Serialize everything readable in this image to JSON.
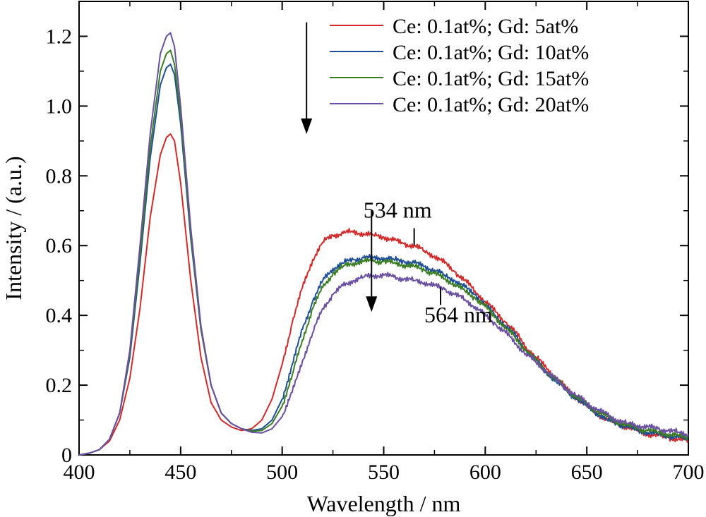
{
  "chart_data": {
    "type": "line",
    "xlabel": "Wavelength / nm",
    "ylabel": "Intensity / (a.u.)",
    "xlim": [
      400,
      700
    ],
    "ylim": [
      0,
      1.3
    ],
    "x_ticks": [
      400,
      450,
      500,
      550,
      600,
      650,
      700
    ],
    "y_ticks": [
      0,
      0.2,
      0.4,
      0.6,
      0.8,
      1.0,
      1.2
    ],
    "x_tick_labels": [
      "400",
      "450",
      "500",
      "550",
      "600",
      "650",
      "700"
    ],
    "y_tick_labels": [
      "0",
      "0.2",
      "0.4",
      "0.6",
      "0.8",
      "1.0",
      "1.2"
    ],
    "grid": false,
    "legend_position": "top-right",
    "series": [
      {
        "name": "Ce: 0.1at%; Gd: 5at%",
        "color": "#d42a2a",
        "x": [
          400,
          405,
          410,
          415,
          420,
          425,
          430,
          435,
          440,
          443,
          445,
          447,
          450,
          455,
          460,
          465,
          470,
          475,
          480,
          485,
          490,
          495,
          500,
          505,
          510,
          515,
          520,
          525,
          530,
          534,
          540,
          545,
          550,
          555,
          560,
          565,
          570,
          575,
          580,
          585,
          590,
          595,
          600,
          605,
          610,
          615,
          620,
          625,
          630,
          635,
          640,
          645,
          650,
          655,
          660,
          665,
          670,
          675,
          680,
          685,
          690,
          695,
          700
        ],
        "y": [
          0.0,
          0.005,
          0.015,
          0.04,
          0.1,
          0.22,
          0.42,
          0.68,
          0.86,
          0.91,
          0.92,
          0.9,
          0.78,
          0.5,
          0.28,
          0.15,
          0.1,
          0.08,
          0.07,
          0.075,
          0.1,
          0.16,
          0.26,
          0.38,
          0.48,
          0.56,
          0.61,
          0.63,
          0.635,
          0.64,
          0.635,
          0.63,
          0.625,
          0.615,
          0.605,
          0.6,
          0.585,
          0.57,
          0.55,
          0.525,
          0.5,
          0.47,
          0.44,
          0.41,
          0.38,
          0.35,
          0.31,
          0.28,
          0.25,
          0.22,
          0.19,
          0.165,
          0.14,
          0.12,
          0.1,
          0.09,
          0.08,
          0.07,
          0.06,
          0.055,
          0.05,
          0.045,
          0.04
        ]
      },
      {
        "name": "Ce: 0.1at%; Gd: 10at%",
        "color": "#1f4e99",
        "x": [
          400,
          405,
          410,
          415,
          420,
          425,
          430,
          435,
          440,
          443,
          445,
          447,
          450,
          455,
          460,
          465,
          470,
          475,
          480,
          485,
          490,
          495,
          500,
          505,
          510,
          515,
          520,
          525,
          530,
          535,
          540,
          545,
          550,
          555,
          560,
          565,
          570,
          575,
          580,
          585,
          590,
          595,
          600,
          605,
          610,
          615,
          620,
          625,
          630,
          635,
          640,
          645,
          650,
          655,
          660,
          665,
          670,
          675,
          680,
          685,
          690,
          695,
          700
        ],
        "y": [
          0.0,
          0.005,
          0.015,
          0.045,
          0.12,
          0.28,
          0.55,
          0.85,
          1.06,
          1.11,
          1.12,
          1.09,
          0.95,
          0.62,
          0.36,
          0.2,
          0.12,
          0.09,
          0.075,
          0.07,
          0.075,
          0.1,
          0.16,
          0.26,
          0.36,
          0.44,
          0.5,
          0.535,
          0.55,
          0.56,
          0.565,
          0.565,
          0.565,
          0.56,
          0.555,
          0.55,
          0.54,
          0.53,
          0.515,
          0.5,
          0.48,
          0.46,
          0.43,
          0.4,
          0.37,
          0.34,
          0.3,
          0.27,
          0.24,
          0.21,
          0.185,
          0.16,
          0.14,
          0.12,
          0.1,
          0.09,
          0.08,
          0.07,
          0.065,
          0.06,
          0.055,
          0.05,
          0.045
        ]
      },
      {
        "name": "Ce: 0.1at%; Gd: 15at%",
        "color": "#3a7d22",
        "x": [
          400,
          405,
          410,
          415,
          420,
          425,
          430,
          435,
          440,
          443,
          445,
          447,
          450,
          455,
          460,
          465,
          470,
          475,
          480,
          485,
          490,
          495,
          500,
          505,
          510,
          515,
          520,
          525,
          530,
          535,
          540,
          545,
          550,
          555,
          560,
          565,
          570,
          575,
          580,
          585,
          590,
          595,
          600,
          605,
          610,
          615,
          620,
          625,
          630,
          635,
          640,
          645,
          650,
          655,
          660,
          665,
          670,
          675,
          680,
          685,
          690,
          695,
          700
        ],
        "y": [
          0.0,
          0.005,
          0.015,
          0.045,
          0.12,
          0.29,
          0.57,
          0.88,
          1.1,
          1.15,
          1.16,
          1.12,
          0.97,
          0.63,
          0.36,
          0.2,
          0.12,
          0.09,
          0.075,
          0.068,
          0.07,
          0.09,
          0.14,
          0.23,
          0.33,
          0.42,
          0.48,
          0.52,
          0.54,
          0.55,
          0.555,
          0.555,
          0.555,
          0.55,
          0.545,
          0.54,
          0.53,
          0.52,
          0.505,
          0.49,
          0.47,
          0.45,
          0.425,
          0.395,
          0.365,
          0.335,
          0.3,
          0.27,
          0.24,
          0.215,
          0.19,
          0.165,
          0.145,
          0.125,
          0.11,
          0.095,
          0.085,
          0.075,
          0.07,
          0.065,
          0.06,
          0.055,
          0.05
        ]
      },
      {
        "name": "Ce: 0.1at%; Gd: 20at%",
        "color": "#6a4fa3",
        "x": [
          400,
          405,
          410,
          415,
          420,
          425,
          430,
          435,
          440,
          443,
          445,
          447,
          450,
          455,
          460,
          465,
          470,
          475,
          480,
          485,
          490,
          495,
          500,
          505,
          510,
          515,
          520,
          525,
          530,
          535,
          540,
          545,
          550,
          555,
          560,
          565,
          570,
          575,
          580,
          585,
          590,
          595,
          600,
          605,
          610,
          615,
          620,
          625,
          630,
          635,
          640,
          645,
          650,
          655,
          660,
          665,
          670,
          675,
          680,
          685,
          690,
          695,
          700
        ],
        "y": [
          0.0,
          0.005,
          0.015,
          0.045,
          0.12,
          0.3,
          0.6,
          0.92,
          1.15,
          1.2,
          1.21,
          1.17,
          1.0,
          0.65,
          0.37,
          0.2,
          0.12,
          0.09,
          0.075,
          0.065,
          0.063,
          0.075,
          0.11,
          0.18,
          0.27,
          0.35,
          0.42,
          0.46,
          0.485,
          0.5,
          0.51,
          0.515,
          0.515,
          0.51,
          0.505,
          0.5,
          0.495,
          0.485,
          0.475,
          0.46,
          0.445,
          0.425,
          0.4,
          0.375,
          0.35,
          0.32,
          0.29,
          0.265,
          0.24,
          0.215,
          0.19,
          0.17,
          0.15,
          0.13,
          0.115,
          0.1,
          0.09,
          0.085,
          0.08,
          0.075,
          0.07,
          0.065,
          0.06
        ]
      }
    ],
    "annotations": [
      {
        "text": "534 nm",
        "x": 540,
        "y": 0.68
      },
      {
        "text": "564 nm",
        "x": 570,
        "y": 0.38
      }
    ],
    "arrows": [
      {
        "x": 512,
        "y_from": 1.24,
        "y_to": 0.92
      },
      {
        "x": 544,
        "y_from": 0.7,
        "y_to": 0.41
      }
    ],
    "marker_lines": [
      {
        "x": 565,
        "y_from": 0.65,
        "y_to": 0.6
      },
      {
        "x": 578,
        "y_from": 0.43,
        "y_to": 0.48
      }
    ]
  }
}
